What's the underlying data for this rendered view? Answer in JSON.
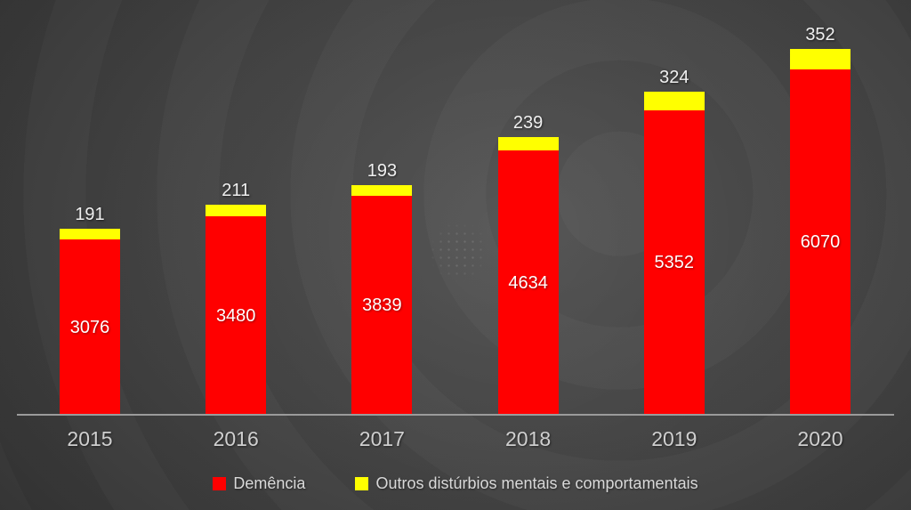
{
  "chart_data": {
    "type": "bar",
    "stacked": true,
    "categories": [
      "2015",
      "2016",
      "2017",
      "2018",
      "2019",
      "2020"
    ],
    "series": [
      {
        "name": "Demência",
        "color": "#ff0000",
        "values": [
          3076,
          3480,
          3839,
          4634,
          5352,
          6070
        ],
        "data_labels": "inside-center",
        "label_color": "#ffffff"
      },
      {
        "name": "Outros distúrbios mentais e comportamentais",
        "color": "#ffff00",
        "values": [
          191,
          211,
          193,
          239,
          324,
          352
        ],
        "data_labels": "outside-end-above-stack",
        "label_color": "#efefef"
      }
    ],
    "title": "",
    "xlabel": "",
    "ylabel": "",
    "ylim": [
      0,
      6500
    ],
    "grid": false,
    "y_axis_ticks_visible": false,
    "x_axis_line_color": "#9b9b9b",
    "legend_position": "bottom-center",
    "tick_label_color": "#cfcfcf",
    "legend_text_color": "#d9d9d9",
    "background_style": "dark radial gradient slide"
  }
}
